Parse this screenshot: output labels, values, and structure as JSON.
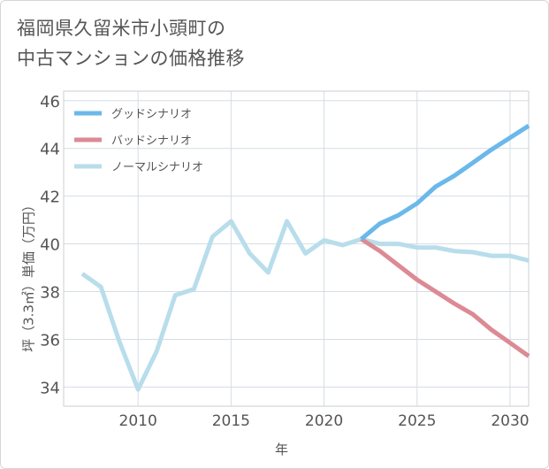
{
  "title": {
    "line1": "福岡県久留米市小頭町の",
    "line2": "中古マンションの価格推移"
  },
  "chart_data": {
    "type": "line",
    "xlabel": "年",
    "ylabel": "坪（3.3㎡）単価（万円）",
    "xlim": [
      2006,
      2031
    ],
    "ylim": [
      33.2,
      46.4
    ],
    "xticks": [
      2010,
      2015,
      2020,
      2025,
      2030
    ],
    "yticks": [
      34,
      36,
      38,
      40,
      42,
      44,
      46
    ],
    "legend_position": "top-left",
    "series": [
      {
        "name": "グッドシナリオ",
        "color": "#6bb8ea",
        "x": [
          2022,
          2023,
          2024,
          2025,
          2026,
          2027,
          2028,
          2029,
          2030,
          2031
        ],
        "y": [
          40.2,
          40.85,
          41.2,
          41.7,
          42.4,
          42.85,
          43.4,
          43.95,
          44.45,
          44.95
        ]
      },
      {
        "name": "バッドシナリオ",
        "color": "#dc8a94",
        "x": [
          2022,
          2023,
          2024,
          2025,
          2026,
          2027,
          2028,
          2029,
          2030,
          2031
        ],
        "y": [
          40.2,
          39.7,
          39.1,
          38.5,
          38.0,
          37.5,
          37.05,
          36.4,
          35.85,
          35.3
        ]
      },
      {
        "name": "ノーマルシナリオ",
        "color": "#b8ddeb",
        "x": [
          2007,
          2008,
          2009,
          2010,
          2011,
          2012,
          2013,
          2014,
          2015,
          2016,
          2017,
          2018,
          2019,
          2020,
          2021,
          2022,
          2023,
          2024,
          2025,
          2026,
          2027,
          2028,
          2029,
          2030,
          2031
        ],
        "y": [
          38.75,
          38.2,
          35.9,
          33.9,
          35.5,
          37.85,
          38.1,
          40.3,
          40.95,
          39.6,
          38.8,
          40.95,
          39.6,
          40.15,
          39.95,
          40.2,
          40.0,
          40.0,
          39.85,
          39.85,
          39.7,
          39.65,
          39.5,
          39.5,
          39.3
        ]
      }
    ]
  }
}
